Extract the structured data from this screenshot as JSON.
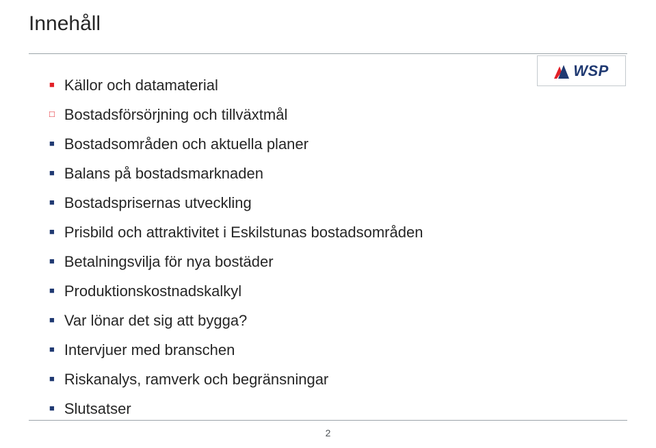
{
  "title": "Innehåll",
  "logo": {
    "text": "WSP",
    "blue": "#203a72",
    "red": "#e22028"
  },
  "bullet_colors": {
    "solid_red": "#e22028",
    "outline_red": "#e22028",
    "blue": "#203a72"
  },
  "items": [
    {
      "style": "solid-red",
      "text": "Källor och datamaterial"
    },
    {
      "style": "outline-red",
      "text": "Bostadsförsörjning och tillväxtmål"
    },
    {
      "style": "solid-blue",
      "text": "Bostadsområden och aktuella planer"
    },
    {
      "style": "solid-blue",
      "text": "Balans på bostadsmarknaden"
    },
    {
      "style": "solid-blue",
      "text": "Bostadsprisernas utveckling"
    },
    {
      "style": "solid-blue",
      "text": "Prisbild och attraktivitet i Eskilstunas bostadsområden"
    },
    {
      "style": "solid-blue",
      "text": "Betalningsvilja för nya bostäder"
    },
    {
      "style": "solid-blue",
      "text": "Produktionskostnadskalkyl"
    },
    {
      "style": "solid-blue",
      "text": "Var lönar det sig att bygga?"
    },
    {
      "style": "solid-blue",
      "text": "Intervjuer med branschen"
    },
    {
      "style": "solid-blue",
      "text": "Riskanalys, ramverk och begränsningar"
    },
    {
      "style": "solid-blue",
      "text": "Slutsatser"
    }
  ],
  "page_number": "2",
  "hr_color": "#9aa3a8",
  "font_sizes": {
    "title": 30,
    "item": 22,
    "page_num": 14
  }
}
